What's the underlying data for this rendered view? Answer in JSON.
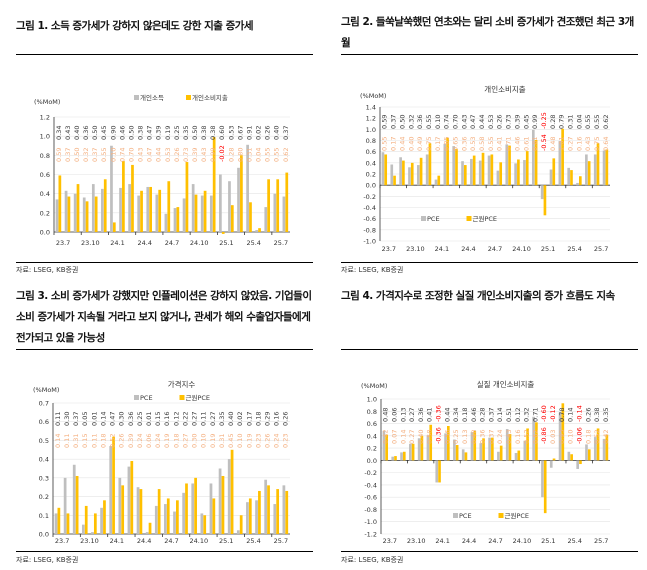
{
  "panels": [
    {
      "title": "그림 1. 소득 증가세가 강하지 않은데도 강한 지출 증가세",
      "source": "자료: LSEG, KB증권"
    },
    {
      "title": "그림 2. 들쑥날쑥했던 연초와는 달리 소비 증가세가 견조했던 최근 3개월",
      "source": "자료: LSEG, KB증권"
    },
    {
      "title": "그림 3. 소비 증가세가 강했지만 인플레이션은 강하지 않았음. 기업들이 소비 증가세가 지속될 거라고 보지 않거나, 관세가 해외 수출업자들에게 전가되고 있을 가능성",
      "source": "자료: LSEG, KB증권"
    },
    {
      "title": "그림 4. 가격지수로 조정한 실질 개인소비지출의 증가 흐름도 지속",
      "source": "자료: LSEG, KB증권"
    }
  ],
  "colors": {
    "gray": "#bfbfbf",
    "yellow": "#ffc000",
    "gray_label": "#404040",
    "yellow_label": "#f4b183",
    "negative_label": "#ff0000"
  },
  "chart_data": [
    {
      "type": "bar",
      "title": "",
      "ylabel": "(%MoM)",
      "ylim": [
        0,
        1.2
      ],
      "yticks": [
        "0.0",
        "0.2",
        "0.4",
        "0.6",
        "0.8",
        "1.0",
        "1.2"
      ],
      "xtick_labels": [
        "23.7",
        "23.10",
        "24.1",
        "24.4",
        "24.7",
        "24.10",
        "25.1",
        "25.4",
        "25.7"
      ],
      "legend": "top-center",
      "grid": true,
      "series": [
        {
          "name": "개인소득",
          "color": "#bfbfbf",
          "values": [
            0.34,
            0.43,
            0.4,
            0.36,
            0.5,
            0.45,
            0.9,
            0.46,
            0.5,
            0.38,
            0.47,
            0.39,
            0.19,
            0.25,
            0.35,
            0.5,
            0.38,
            0.38,
            0.6,
            0.53,
            0.67,
            0.91,
            0.02,
            0.26,
            0.4,
            0.37
          ]
        },
        {
          "name": "개인소비지출",
          "color": "#ffc000",
          "values": [
            0.59,
            0.37,
            0.5,
            0.32,
            0.37,
            0.55,
            0.1,
            0.74,
            0.7,
            0.43,
            0.47,
            0.44,
            0.53,
            0.26,
            0.73,
            0.39,
            0.43,
            0.99,
            -0.02,
            0.28,
            0.8,
            0.31,
            0.04,
            0.55,
            0.55,
            0.62
          ]
        }
      ]
    },
    {
      "type": "bar",
      "title": "개인소비지출",
      "ylabel": "(%MoM)",
      "ylim": [
        -1.0,
        1.4
      ],
      "yticks": [
        "-1.0",
        "-0.8",
        "-0.6",
        "-0.4",
        "-0.2",
        "0.0",
        "0.2",
        "0.4",
        "0.6",
        "0.8",
        "1.0",
        "1.2",
        "1.4"
      ],
      "xtick_labels": [
        "23.7",
        "23.10",
        "24.1",
        "24.4",
        "24.7",
        "24.10",
        "25.1",
        "25.4",
        "25.7"
      ],
      "legend": "lower-left",
      "grid": true,
      "series": [
        {
          "name": "PCE",
          "color": "#bfbfbf",
          "values": [
            0.59,
            0.37,
            0.5,
            0.32,
            0.36,
            0.55,
            0.1,
            0.74,
            0.7,
            0.43,
            0.47,
            0.44,
            0.53,
            0.26,
            0.73,
            0.39,
            0.45,
            0.99,
            -0.25,
            0.28,
            0.79,
            0.31,
            0.04,
            0.55,
            0.55,
            0.62
          ]
        },
        {
          "name": "근원PCE",
          "color": "#ffc000",
          "values": [
            0.55,
            0.17,
            0.44,
            0.4,
            0.49,
            0.75,
            0.17,
            0.85,
            0.65,
            0.36,
            0.53,
            0.58,
            0.55,
            0.41,
            0.71,
            0.46,
            0.61,
            0.81,
            -0.54,
            0.48,
            1.01,
            0.27,
            0.16,
            0.43,
            0.75,
            0.64
          ]
        }
      ]
    },
    {
      "type": "bar",
      "title": "가격지수",
      "ylabel": "(%MoM)",
      "ylim": [
        0,
        0.7
      ],
      "yticks": [
        "0.0",
        "0.1",
        "0.2",
        "0.3",
        "0.4",
        "0.5",
        "0.6",
        "0.7"
      ],
      "xtick_labels": [
        "23.7",
        "23.10",
        "24.1",
        "24.4",
        "24.7",
        "24.10",
        "25.1",
        "25.4",
        "25.7"
      ],
      "legend": "top-center",
      "grid": true,
      "series": [
        {
          "name": "PCE",
          "color": "#bfbfbf",
          "values": [
            0.11,
            0.3,
            0.37,
            0.05,
            0.01,
            0.14,
            0.47,
            0.3,
            0.36,
            0.25,
            0.01,
            0.15,
            0.16,
            0.12,
            0.22,
            0.27,
            0.11,
            0.27,
            0.35,
            0.4,
            0.02,
            0.17,
            0.18,
            0.29,
            0.16,
            0.26
          ]
        },
        {
          "name": "근원PCE",
          "color": "#ffc000",
          "values": [
            0.14,
            0.11,
            0.31,
            0.15,
            0.11,
            0.18,
            0.52,
            0.26,
            0.39,
            0.24,
            0.06,
            0.24,
            0.19,
            0.18,
            0.27,
            0.3,
            0.1,
            0.19,
            0.31,
            0.45,
            0.1,
            0.19,
            0.23,
            0.26,
            0.24,
            0.23
          ]
        }
      ]
    },
    {
      "type": "bar",
      "title": "실질 개인소비지출",
      "ylabel": "(%MoM)",
      "ylim": [
        -1.2,
        1.0
      ],
      "yticks": [
        "-1.2",
        "-1.0",
        "-0.8",
        "-0.6",
        "-0.4",
        "-0.2",
        "0.0",
        "0.2",
        "0.4",
        "0.6",
        "0.8",
        "1.0"
      ],
      "xtick_labels": [
        "23.7",
        "23.10",
        "24.1",
        "24.4",
        "24.7",
        "24.10",
        "25.1",
        "25.4",
        "25.7"
      ],
      "legend": "lower-center",
      "grid": true,
      "series": [
        {
          "name": "PCE",
          "color": "#bfbfbf",
          "values": [
            0.48,
            0.06,
            0.13,
            0.27,
            0.36,
            0.41,
            -0.36,
            0.44,
            0.34,
            0.18,
            0.46,
            0.28,
            0.37,
            0.14,
            0.51,
            0.12,
            0.32,
            0.71,
            -0.6,
            -0.12,
            0.78,
            0.14,
            -0.14,
            0.26,
            0.38,
            0.35
          ]
        },
        {
          "name": "근원PCE",
          "color": "#ffc000",
          "values": [
            0.42,
            0.07,
            0.14,
            0.27,
            0.4,
            0.58,
            -0.36,
            0.56,
            0.25,
            0.13,
            0.48,
            0.36,
            0.37,
            0.24,
            0.43,
            0.16,
            0.52,
            0.62,
            -0.86,
            0.03,
            0.93,
            0.1,
            -0.06,
            0.18,
            0.52,
            0.42
          ]
        }
      ]
    }
  ]
}
